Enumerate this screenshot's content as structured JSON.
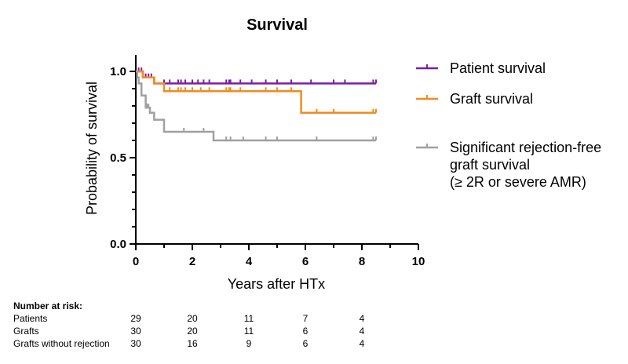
{
  "chart_data": {
    "type": "line",
    "title": "Survival",
    "xlabel": "Years after HTx",
    "ylabel": "Probability of survival",
    "xlim": [
      0,
      10
    ],
    "ylim": [
      0,
      1.1
    ],
    "xticks": [
      0,
      2,
      4,
      6,
      8,
      10
    ],
    "yticks": [
      0.0,
      0.5,
      1.0
    ],
    "ytick_labels": [
      "0.0",
      "0.5",
      "1.0"
    ],
    "grid": false,
    "legend_position": "right",
    "series": [
      {
        "name": "Patient survival",
        "color": "#7B1FA2",
        "step": [
          [
            0,
            1.0
          ],
          [
            0.25,
            0.965
          ],
          [
            0.65,
            0.93
          ],
          [
            8.5,
            0.93
          ]
        ],
        "censor_x": [
          0.1,
          0.2,
          0.35,
          0.45,
          0.55,
          1.0,
          1.2,
          1.5,
          1.6,
          1.75,
          2.0,
          2.2,
          2.4,
          2.6,
          3.2,
          3.3,
          3.35,
          3.7,
          4.1,
          4.6,
          5.0,
          5.5,
          6.2,
          7.0,
          7.4,
          8.4,
          8.5
        ]
      },
      {
        "name": "Graft survival",
        "color": "#F28C1E",
        "step": [
          [
            0,
            1.0
          ],
          [
            0.25,
            0.965
          ],
          [
            0.65,
            0.93
          ],
          [
            1.0,
            0.885
          ],
          [
            5.85,
            0.885
          ],
          [
            5.85,
            0.76
          ],
          [
            8.5,
            0.76
          ]
        ],
        "censor_x": [
          1.2,
          1.5,
          1.6,
          1.75,
          2.0,
          2.3,
          2.6,
          3.2,
          3.3,
          3.35,
          3.7,
          4.6,
          5.0,
          5.5,
          6.4,
          7.0,
          8.4,
          8.5
        ]
      },
      {
        "name": "Significant rejection-free graft survival (≥ 2R or severe AMR)",
        "color": "#A0A0A0",
        "step": [
          [
            0,
            1.0
          ],
          [
            0.05,
            0.965
          ],
          [
            0.1,
            0.93
          ],
          [
            0.2,
            0.86
          ],
          [
            0.35,
            0.79
          ],
          [
            0.5,
            0.76
          ],
          [
            0.65,
            0.72
          ],
          [
            1.0,
            0.65
          ],
          [
            2.75,
            0.6
          ],
          [
            8.5,
            0.6
          ]
        ],
        "censor_x": [
          0.4,
          0.45,
          1.7,
          2.4,
          3.2,
          3.35,
          3.8,
          4.6,
          5.0,
          6.4,
          8.4,
          8.5
        ]
      }
    ],
    "legend": [
      {
        "lines": [
          "Patient survival"
        ]
      },
      {
        "lines": [
          "Graft survival"
        ]
      },
      {
        "lines": [
          "Significant rejection-free",
          "graft survival",
          "(≥ 2R or severe AMR)"
        ]
      }
    ]
  },
  "risk_table": {
    "title": "Number at risk:",
    "x": [
      0,
      2,
      4,
      6,
      8
    ],
    "rows": [
      {
        "label": "Patients",
        "values": [
          "29",
          "20",
          "11",
          "7",
          "4"
        ]
      },
      {
        "label": "Grafts",
        "values": [
          "30",
          "20",
          "11",
          "6",
          "4"
        ]
      },
      {
        "label": "Grafts without rejection",
        "values": [
          "30",
          "16",
          "9",
          "6",
          "4"
        ]
      }
    ]
  }
}
